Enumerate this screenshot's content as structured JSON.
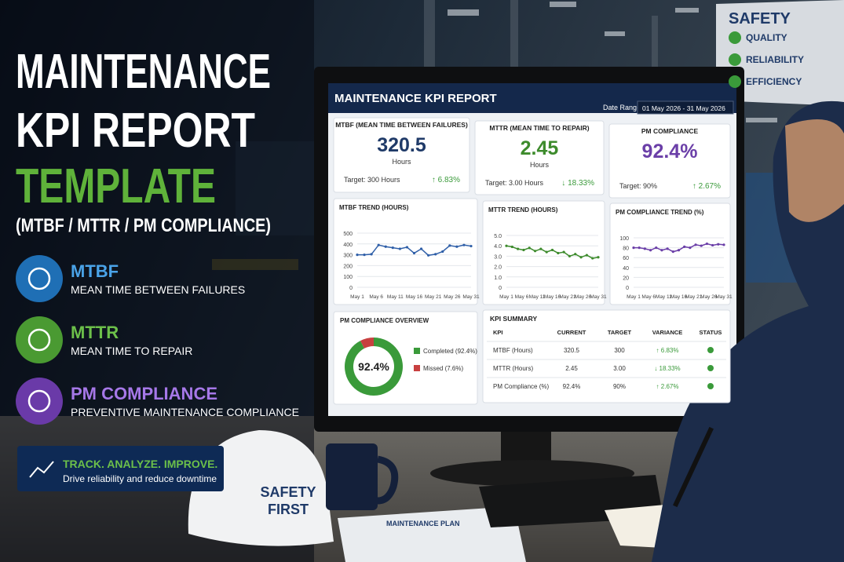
{
  "headline": {
    "line1": "MAINTENANCE",
    "line2": "KPI REPORT",
    "line3": "TEMPLATE",
    "subtitle": "(MTBF / MTTR / PM COMPLIANCE)"
  },
  "features": [
    {
      "title": "MTBF",
      "text": "MEAN TIME BETWEEN FAILURES",
      "color": "#1f6fb5",
      "title_color": "#4aa3e8"
    },
    {
      "title": "MTTR",
      "text": "MEAN TIME TO REPAIR",
      "color": "#4a9a32",
      "title_color": "#6cc04a"
    },
    {
      "title": "PM COMPLIANCE",
      "text": "PREVENTIVE MAINTENANCE COMPLIANCE",
      "color": "#6a3aa8",
      "title_color": "#a678e8"
    }
  ],
  "banner": {
    "title": "TRACK. ANALYZE. IMPROVE.",
    "text": "Drive reliability and reduce downtime"
  },
  "sign": {
    "title": "SAFETY",
    "items": [
      "QUALITY",
      "RELIABILITY",
      "EFFICIENCY"
    ]
  },
  "helmet": {
    "lines": [
      "SAFETY",
      "FIRST"
    ]
  },
  "clipboard": {
    "title": "MAINTENANCE PLAN"
  },
  "dashboard": {
    "title": "MAINTENANCE KPI REPORT",
    "date_label": "Date Range:",
    "date_range": "01 May 2026 - 31 May 2026",
    "cards": [
      {
        "title": "MTBF (MEAN TIME BETWEEN FAILURES)",
        "value": "320.5",
        "unit": "Hours",
        "target": "Target: 300 Hours",
        "change": "↑ 6.83%",
        "color": "#1f3a68"
      },
      {
        "title": "MTTR (MEAN TIME TO REPAIR)",
        "value": "2.45",
        "unit": "Hours",
        "target": "Target: 3.00 Hours",
        "change": "↓ 18.33%",
        "color": "#3d8b2c"
      },
      {
        "title": "PM COMPLIANCE",
        "value": "92.4%",
        "target": "Target: 90%",
        "change": "↑ 2.67%",
        "color": "#6b3fa8"
      }
    ],
    "charts": [
      {
        "type": "line",
        "title": "MTBF TREND (HOURS)",
        "color": "#2f5fa8",
        "categories": [
          "May 1",
          "May 6",
          "May 11",
          "May 16",
          "May 21",
          "May 26",
          "May 31"
        ],
        "ylim": [
          0,
          500
        ],
        "yticks": [
          0,
          100,
          200,
          300,
          400,
          500
        ],
        "values": [
          300,
          300,
          305,
          390,
          375,
          365,
          355,
          370,
          315,
          355,
          295,
          305,
          330,
          385,
          375,
          390,
          380
        ]
      },
      {
        "type": "line",
        "title": "MTTR TREND (HOURS)",
        "color": "#3d8b2c",
        "categories": [
          "May 1",
          "May 6",
          "May 11",
          "May 16",
          "May 21",
          "May 26",
          "May 31"
        ],
        "ylim": [
          0,
          5
        ],
        "yticks": [
          0,
          {
            "value": 1,
            "label": "1.0"
          },
          {
            "value": 2,
            "label": "2.0"
          },
          {
            "value": 3,
            "label": "3.0"
          },
          {
            "value": 4,
            "label": "4.0"
          },
          {
            "value": 5,
            "label": "5.0"
          }
        ],
        "values": [
          4.0,
          3.9,
          3.7,
          3.6,
          3.8,
          3.5,
          3.7,
          3.4,
          3.6,
          3.3,
          3.4,
          3.0,
          3.2,
          2.9,
          3.1,
          2.8,
          2.9
        ]
      },
      {
        "type": "line",
        "title": "PM COMPLIANCE TREND (%)",
        "color": "#6b3fa8",
        "categories": [
          "May 1",
          "May 6",
          "May 11",
          "May 16",
          "May 21",
          "May 26",
          "May 31"
        ],
        "ylim": [
          0,
          100
        ],
        "yticks": [
          0,
          20,
          40,
          60,
          80,
          100
        ],
        "values": [
          80,
          80,
          78,
          75,
          80,
          75,
          78,
          72,
          75,
          82,
          80,
          86,
          84,
          88,
          85,
          87,
          86
        ]
      }
    ],
    "donut": {
      "type": "pie",
      "title": "PM COMPLIANCE OVERVIEW",
      "center": "92.4%",
      "series": [
        {
          "name": "Completed (92.4%)",
          "value": 92.4,
          "color": "#3a9a3a"
        },
        {
          "name": "Missed (7.6%)",
          "value": 7.6,
          "color": "#c84040"
        }
      ]
    },
    "table": {
      "title": "KPI SUMMARY",
      "columns": [
        "KPI",
        "CURRENT",
        "TARGET",
        "VARIANCE",
        "STATUS"
      ],
      "rows": [
        [
          "MTBF (Hours)",
          "320.5",
          "300",
          "↑ 6.83%"
        ],
        [
          "MTTR (Hours)",
          "2.45",
          "3.00",
          "↓ 18.33%"
        ],
        [
          "PM Compliance (%)",
          "92.4%",
          "90%",
          "↑ 2.67%"
        ]
      ]
    }
  }
}
